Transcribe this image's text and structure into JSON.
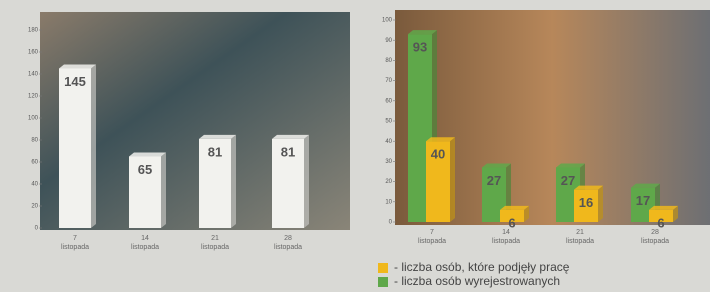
{
  "chart_data": [
    {
      "type": "bar",
      "categories": [
        "7 listopada",
        "14 listopada",
        "21 listopada",
        "28 listopada"
      ],
      "values": [
        145,
        65,
        81,
        81
      ],
      "color": "#f2f2ee",
      "ylim": [
        0,
        180
      ],
      "yticks": [
        0,
        20,
        40,
        60,
        80,
        100,
        120,
        140,
        160,
        180
      ]
    },
    {
      "type": "bar",
      "categories": [
        "7 listopada",
        "14 listopada",
        "21 listopada",
        "28 listopada"
      ],
      "series": [
        {
          "name": "- liczba osób wyrejestrowanych",
          "color": "#5fa84a",
          "values": [
            93,
            27,
            27,
            17
          ]
        },
        {
          "name": "- liczba osób, które podjęły pracę",
          "color": "#f0b81c",
          "values": [
            40,
            6,
            16,
            6
          ]
        }
      ],
      "ylim": [
        0,
        100
      ],
      "yticks": [
        0,
        10,
        20,
        30,
        40,
        50,
        60,
        70,
        80,
        90,
        100
      ]
    }
  ]
}
